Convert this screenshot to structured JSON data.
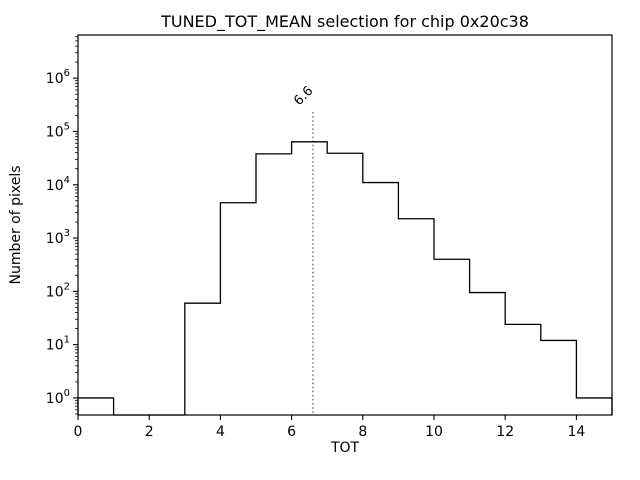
{
  "chart_data": {
    "type": "bar",
    "subtype": "step-histogram",
    "title": "TUNED_TOT_MEAN selection for chip 0x20c38",
    "xlabel": "TOT",
    "ylabel": "Number of pixels",
    "yscale": "log",
    "grid": false,
    "legend": false,
    "xlim": [
      0,
      15
    ],
    "ylim_log10": [
      -0.32,
      6.81
    ],
    "x_ticks": [
      0,
      2,
      4,
      6,
      8,
      10,
      12,
      14
    ],
    "y_tick_exponents": [
      0,
      1,
      2,
      3,
      4,
      5,
      6
    ],
    "bin_edges": [
      0,
      1,
      2,
      3,
      4,
      5,
      6,
      7,
      8,
      9,
      10,
      11,
      12,
      13,
      14,
      15
    ],
    "counts": [
      1,
      0,
      0,
      60,
      4600,
      38000,
      64000,
      39000,
      11000,
      2300,
      400,
      95,
      24,
      12,
      1
    ],
    "line_color": "#000000",
    "background_color": "#ffffff",
    "vline": {
      "x": 6.6,
      "style": "dotted",
      "color": "#808080"
    },
    "annotation": {
      "label": "6.6",
      "x": 6.6,
      "rotation_deg": -45,
      "color": "#808080"
    }
  }
}
